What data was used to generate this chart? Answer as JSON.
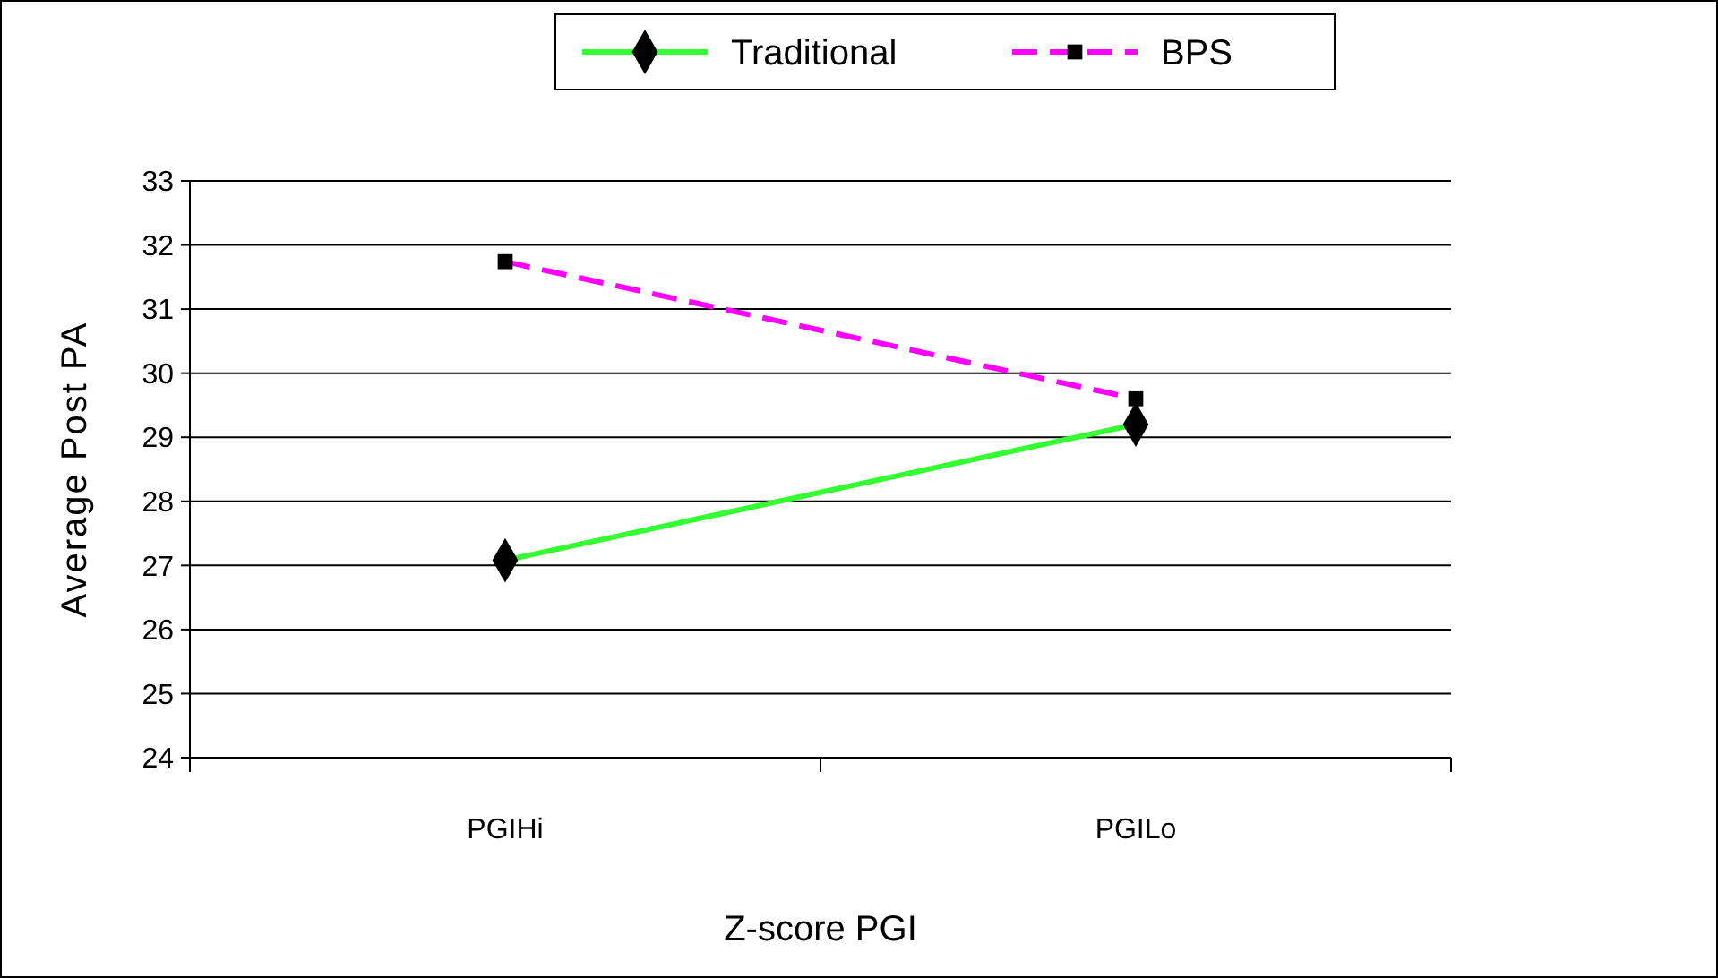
{
  "chart_data": {
    "type": "line",
    "xlabel": "Z-score PGI",
    "ylabel": "Average Post PA",
    "categories": [
      "PGIHi",
      "PGILo"
    ],
    "series": [
      {
        "name": "Traditional",
        "color": "#33ff33",
        "values": [
          27.08,
          29.2
        ],
        "marker": "diamond",
        "line_style": "solid"
      },
      {
        "name": "BPS",
        "color": "#ff00ff",
        "values": [
          31.74,
          29.6
        ],
        "marker": "square",
        "line_style": "dashed"
      }
    ],
    "ylim": [
      24,
      33
    ],
    "yticks": [
      24,
      25,
      26,
      27,
      28,
      29,
      30,
      31,
      32,
      33
    ],
    "grid": "y",
    "legend": "top"
  }
}
